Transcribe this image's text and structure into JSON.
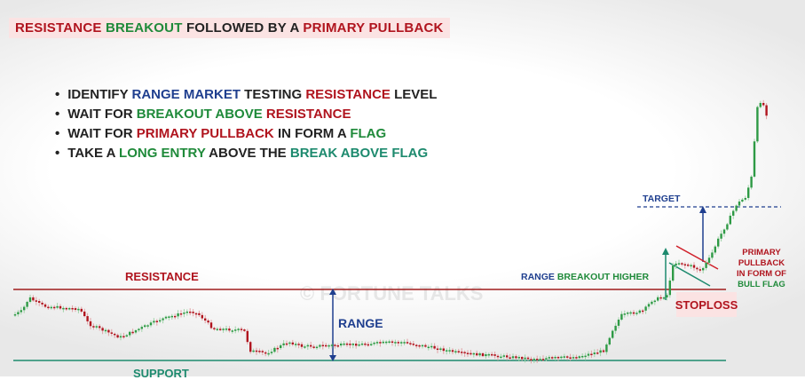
{
  "title": {
    "part1": "RESISTANCE",
    "part2": "BREAKOUT",
    "part3": "FOLLOWED BY A",
    "part4": "PRIMARY PULLBACK"
  },
  "bullets": [
    {
      "a": "IDENTIFY ",
      "b": "RANGE MARKET",
      "c": " TESTING ",
      "d": "RESISTANCE",
      "e": " LEVEL"
    },
    {
      "a": "WAIT FOR ",
      "b": "BREAKOUT ABOVE",
      "c": " ",
      "d": "RESISTANCE",
      "e": ""
    },
    {
      "a": "WAIT FOR ",
      "b": "PRIMARY PULLBACK",
      "c": " IN FORM A ",
      "d": "FLAG",
      "e": ""
    },
    {
      "a": "TAKE A ",
      "b": "LONG ENTRY",
      "c": " ABOVE THE ",
      "d": "BREAK ABOVE FLAG",
      "e": ""
    }
  ],
  "labels": {
    "resistance": "RESISTANCE",
    "support": "SUPPORT",
    "range": "RANGE",
    "breakout1": "RANGE",
    "breakout2": "BREAKOUT HIGHER",
    "target": "TARGET",
    "stoploss": "STOPLOSS",
    "pullback1": "PRIMARY PULLBACK",
    "pullback2": "IN FORM OF",
    "pullback3": "BULL FLAG",
    "watermark": "© FORTUNE TALKS"
  },
  "colors": {
    "resistance": "#a01c1c",
    "support": "#1d8a6e",
    "range": "#1f3f8f",
    "bull": "#2e9a45",
    "bear": "#b0141e"
  }
}
